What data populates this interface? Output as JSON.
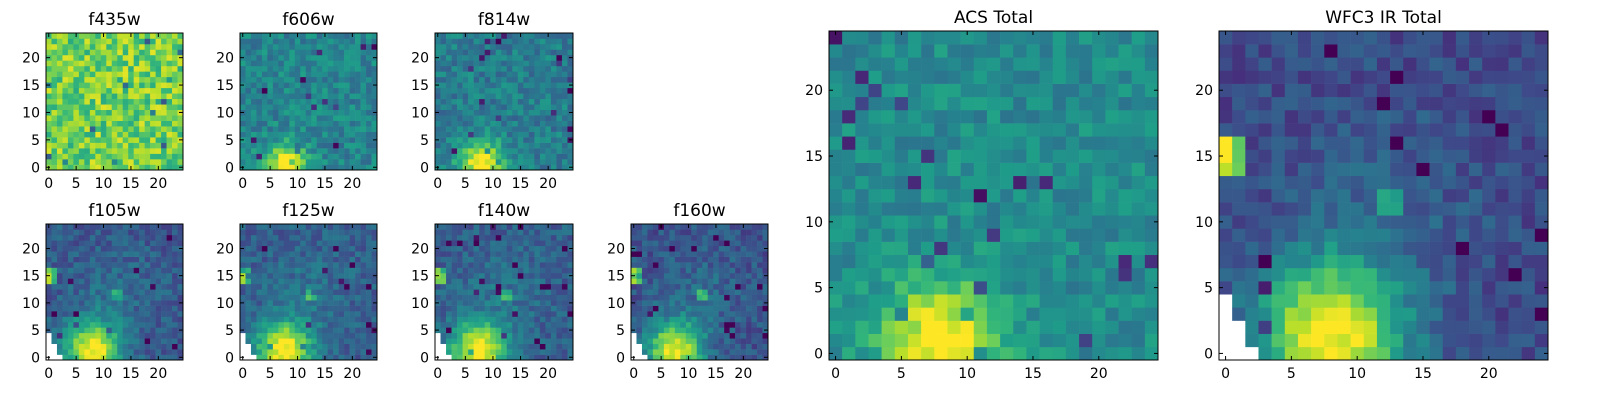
{
  "figure": {
    "background": "#ffffff",
    "colormap": "viridis",
    "colormap_stops": [
      "#440154",
      "#482878",
      "#3e4989",
      "#31688e",
      "#26828e",
      "#1f9e89",
      "#35b779",
      "#6ece58",
      "#b5de2b",
      "#fde725"
    ]
  },
  "chart_data": [
    {
      "type": "heatmap",
      "title": "f435w",
      "grid_size": [
        25,
        25
      ],
      "xlim": [
        0,
        24
      ],
      "ylim": [
        0,
        24
      ],
      "xticks": [
        0,
        5,
        10,
        15,
        20
      ],
      "yticks": [
        0,
        5,
        10,
        15,
        20
      ],
      "pattern": "noise",
      "base_level": 0.78,
      "noise": 0.18,
      "source": {
        "x": 8,
        "y": 0.5,
        "sigma": 3,
        "amplitude": 0.0
      }
    },
    {
      "type": "heatmap",
      "title": "f606w",
      "grid_size": [
        25,
        25
      ],
      "xlim": [
        0,
        24
      ],
      "ylim": [
        0,
        24
      ],
      "xticks": [
        0,
        5,
        10,
        15,
        20
      ],
      "yticks": [
        0,
        5,
        10,
        15,
        20
      ],
      "pattern": "noise",
      "base_level": 0.45,
      "noise": 0.12,
      "source": {
        "x": 8,
        "y": 0.5,
        "sigma": 2.6,
        "amplitude": 0.6
      }
    },
    {
      "type": "heatmap",
      "title": "f814w",
      "grid_size": [
        25,
        25
      ],
      "xlim": [
        0,
        24
      ],
      "ylim": [
        0,
        24
      ],
      "xticks": [
        0,
        5,
        10,
        15,
        20
      ],
      "yticks": [
        0,
        5,
        10,
        15,
        20
      ],
      "pattern": "noise",
      "base_level": 0.42,
      "noise": 0.12,
      "source": {
        "x": 8,
        "y": 0.8,
        "sigma": 2.8,
        "amplitude": 0.65
      }
    },
    {
      "type": "heatmap",
      "title": "f105w",
      "grid_size": [
        25,
        25
      ],
      "xlim": [
        0,
        24
      ],
      "ylim": [
        0,
        24
      ],
      "xticks": [
        0,
        5,
        10,
        15,
        20
      ],
      "yticks": [
        0,
        5,
        10,
        15,
        20
      ],
      "pattern": "ir",
      "base_level": 0.28,
      "noise": 0.1,
      "source": {
        "x": 8,
        "y": 1.5,
        "sigma": 3.6,
        "amplitude": 0.72
      },
      "secondary_source": {
        "x": 0,
        "y": 15,
        "amplitude": 0.55
      },
      "missing_corner": true
    },
    {
      "type": "heatmap",
      "title": "f125w",
      "grid_size": [
        25,
        25
      ],
      "xlim": [
        0,
        24
      ],
      "ylim": [
        0,
        24
      ],
      "xticks": [
        0,
        5,
        10,
        15,
        20
      ],
      "yticks": [
        0,
        5,
        10,
        15,
        20
      ],
      "pattern": "ir",
      "base_level": 0.3,
      "noise": 0.1,
      "source": {
        "x": 7.5,
        "y": 1.5,
        "sigma": 3.6,
        "amplitude": 0.72
      },
      "secondary_source": {
        "x": 0,
        "y": 15,
        "amplitude": 0.55
      },
      "missing_corner": true
    },
    {
      "type": "heatmap",
      "title": "f140w",
      "grid_size": [
        25,
        25
      ],
      "xlim": [
        0,
        24
      ],
      "ylim": [
        0,
        24
      ],
      "xticks": [
        0,
        5,
        10,
        15,
        20
      ],
      "yticks": [
        0,
        5,
        10,
        15,
        20
      ],
      "pattern": "ir",
      "base_level": 0.3,
      "noise": 0.1,
      "source": {
        "x": 7.5,
        "y": 1.5,
        "sigma": 3.6,
        "amplitude": 0.72
      },
      "secondary_source": {
        "x": 0,
        "y": 15,
        "amplitude": 0.55
      },
      "missing_corner": true
    },
    {
      "type": "heatmap",
      "title": "f160w",
      "grid_size": [
        25,
        25
      ],
      "xlim": [
        0,
        24
      ],
      "ylim": [
        0,
        24
      ],
      "xticks": [
        0,
        5,
        10,
        15,
        20
      ],
      "yticks": [
        0,
        5,
        10,
        15,
        20
      ],
      "pattern": "ir",
      "base_level": 0.26,
      "noise": 0.1,
      "source": {
        "x": 7.5,
        "y": 1.5,
        "sigma": 3.6,
        "amplitude": 0.72
      },
      "secondary_source": {
        "x": 0,
        "y": 15,
        "amplitude": 0.55
      },
      "missing_corner": true
    },
    {
      "type": "heatmap",
      "title": "ACS Total",
      "grid_size": [
        25,
        25
      ],
      "xlim": [
        0,
        24
      ],
      "ylim": [
        0,
        24
      ],
      "xticks": [
        0,
        5,
        10,
        15,
        20
      ],
      "yticks": [
        0,
        5,
        10,
        15,
        20
      ],
      "pattern": "noise",
      "base_level": 0.48,
      "noise": 0.1,
      "source": {
        "x": 8,
        "y": 1.0,
        "sigma": 3.2,
        "amplitude": 0.55
      }
    },
    {
      "type": "heatmap",
      "title": "WFC3 IR Total",
      "grid_size": [
        25,
        25
      ],
      "xlim": [
        0,
        24
      ],
      "ylim": [
        0,
        24
      ],
      "xticks": [
        0,
        5,
        10,
        15,
        20
      ],
      "yticks": [
        0,
        5,
        10,
        15,
        20
      ],
      "pattern": "ir",
      "base_level": 0.22,
      "noise": 0.09,
      "source": {
        "x": 8,
        "y": 1.5,
        "sigma": 4.0,
        "amplitude": 0.8
      },
      "secondary_source": {
        "x": 0,
        "y": 15,
        "amplitude": 0.75
      },
      "missing_corner": true
    }
  ]
}
